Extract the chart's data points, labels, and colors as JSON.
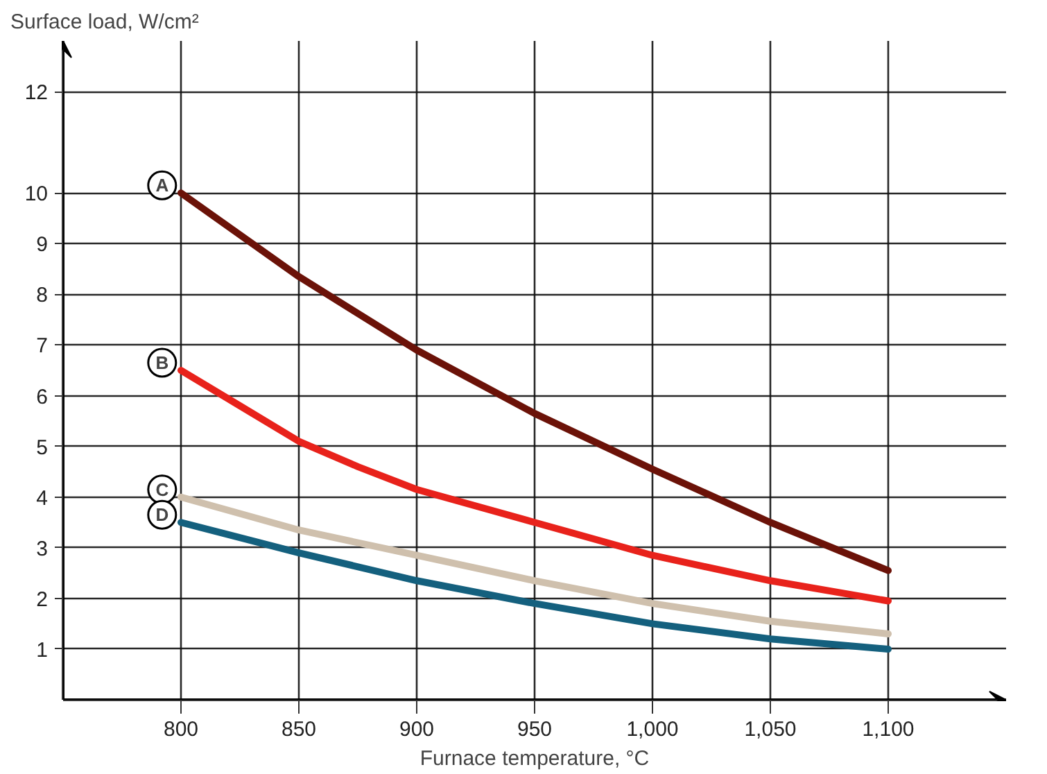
{
  "chart_data": {
    "type": "line",
    "xlabel": "Furnace temperature, °C",
    "ylabel": "Surface load, W/cm²",
    "xlim": [
      750,
      1150
    ],
    "ylim": [
      0,
      13
    ],
    "xticks": [
      800,
      850,
      900,
      950,
      {
        "value": 1000,
        "label": "1,000"
      },
      {
        "value": 1050,
        "label": "1,050"
      },
      {
        "value": 1100,
        "label": "1,100"
      }
    ],
    "yticks": [
      1,
      2,
      3,
      4,
      5,
      6,
      7,
      8,
      9,
      10,
      12
    ],
    "grid": true,
    "legend": false,
    "marker": "none",
    "line_style": "solid",
    "x": [
      800,
      850,
      900,
      950,
      1000,
      1050,
      1100
    ],
    "series": [
      {
        "name": "A",
        "color": "#6b1208",
        "values": [
          10,
          8.35,
          6.9,
          5.65,
          4.55,
          3.5,
          2.55
        ]
      },
      {
        "name": "B",
        "color": "#e8221b",
        "x": [
          800,
          825,
          850,
          875,
          900,
          950,
          1000,
          1050,
          1100
        ],
        "values": [
          6.5,
          5.8,
          5.1,
          4.6,
          4.15,
          3.5,
          2.85,
          2.35,
          1.95
        ]
      },
      {
        "name": "C",
        "color": "#cfc0ad",
        "values": [
          4.0,
          3.35,
          2.85,
          2.35,
          1.9,
          1.55,
          1.3
        ]
      },
      {
        "name": "D",
        "color": "#14607e",
        "values": [
          3.5,
          2.9,
          2.35,
          1.9,
          1.5,
          1.2,
          1.0
        ]
      }
    ]
  }
}
